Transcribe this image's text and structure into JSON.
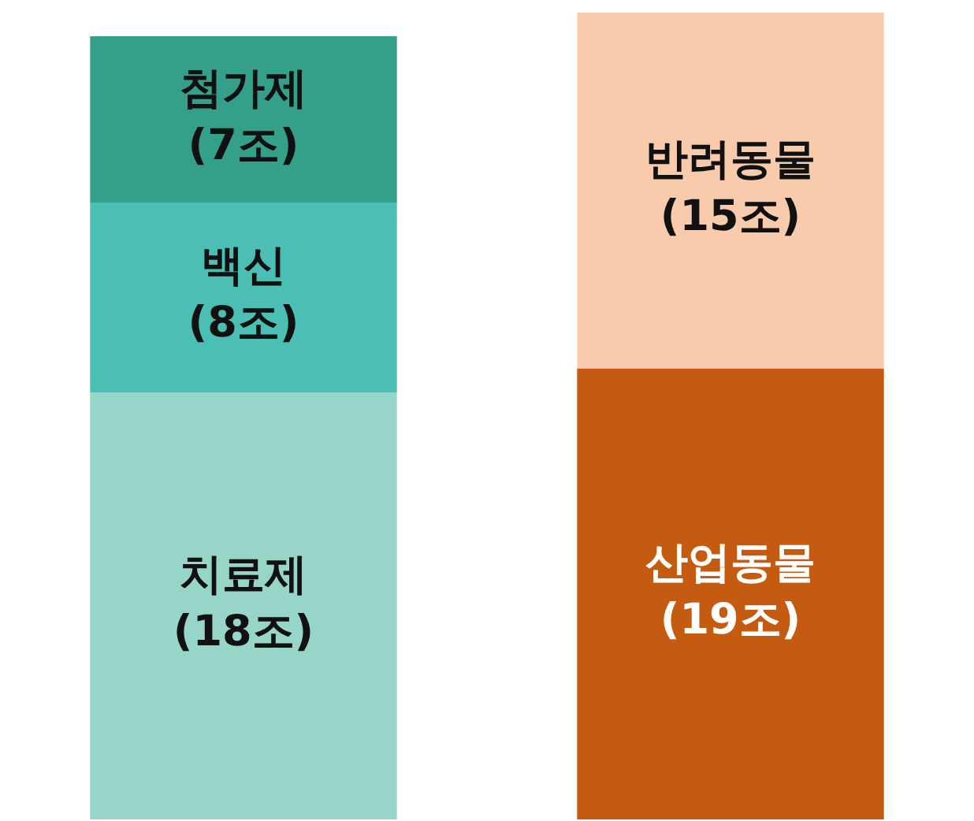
{
  "chart_data": {
    "type": "bar",
    "stacked": true,
    "categories": [
      null,
      null
    ],
    "ylim": [
      0,
      34
    ],
    "tick_labels": false,
    "legend": false,
    "series": [
      {
        "name": "치료제",
        "color": "#96d5c8",
        "values": [
          18,
          null
        ],
        "value_labels": [
          "(18조)",
          null
        ]
      },
      {
        "name": "백신",
        "color": "#4bbfb3",
        "values": [
          8,
          null
        ],
        "value_labels": [
          "(8조)",
          null
        ]
      },
      {
        "name": "첨가제",
        "color": "#35a08a",
        "values": [
          7,
          null
        ],
        "value_labels": [
          "(7조)",
          null
        ]
      },
      {
        "name": "산업동물",
        "color": "#c55a11",
        "values": [
          null,
          19
        ],
        "value_labels": [
          null,
          "(19조)"
        ]
      },
      {
        "name": "반려동물",
        "color": "#f8cbad",
        "values": [
          null,
          15
        ],
        "value_labels": [
          null,
          "(15조)"
        ]
      }
    ]
  }
}
